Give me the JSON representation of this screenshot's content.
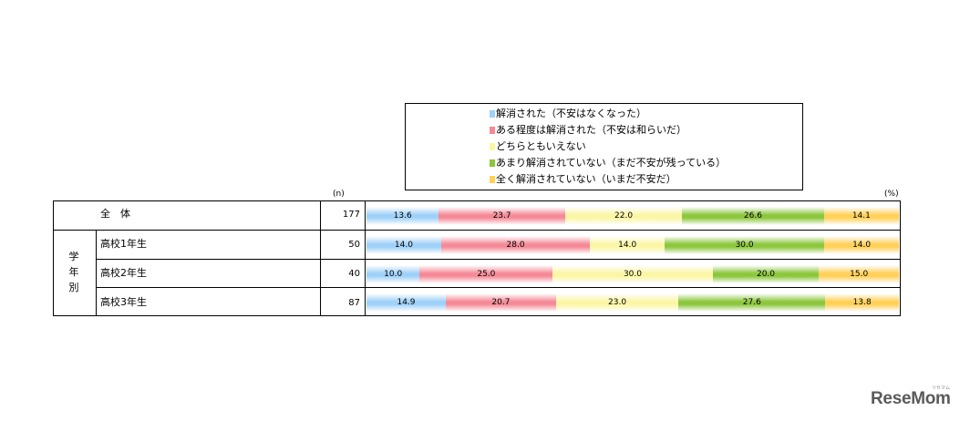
{
  "colors": [
    "#9fd0f7",
    "#f48a97",
    "#fbf6a6",
    "#8dc63f",
    "#ffd05a"
  ],
  "units": {
    "n": "(n)",
    "percent": "(%)"
  },
  "group_label": "学年別",
  "chart_data": {
    "type": "bar",
    "stacked": true,
    "orientation": "horizontal",
    "categories": [
      "全　体",
      "高校1年生",
      "高校2年生",
      "高校3年生"
    ],
    "n": [
      177,
      50,
      40,
      87
    ],
    "series": [
      {
        "name": "解消された（不安はなくなった）",
        "values": [
          13.6,
          14.0,
          10.0,
          14.9
        ]
      },
      {
        "name": "ある程度は解消された（不安は和らいだ）",
        "values": [
          23.7,
          28.0,
          25.0,
          20.7
        ]
      },
      {
        "name": "どちらともいえない",
        "values": [
          22.0,
          14.0,
          30.0,
          23.0
        ]
      },
      {
        "name": "あまり解消されていない（まだ不安が残っている）",
        "values": [
          26.6,
          30.0,
          20.0,
          27.6
        ]
      },
      {
        "name": "全く解消されていない（いまだ不安だ）",
        "values": [
          14.1,
          14.0,
          15.0,
          13.8
        ]
      }
    ],
    "xlim": [
      0,
      100
    ],
    "legend": "top",
    "data_labels": true
  },
  "logo": {
    "text": "ReseMom",
    "sub": "リセマム"
  }
}
